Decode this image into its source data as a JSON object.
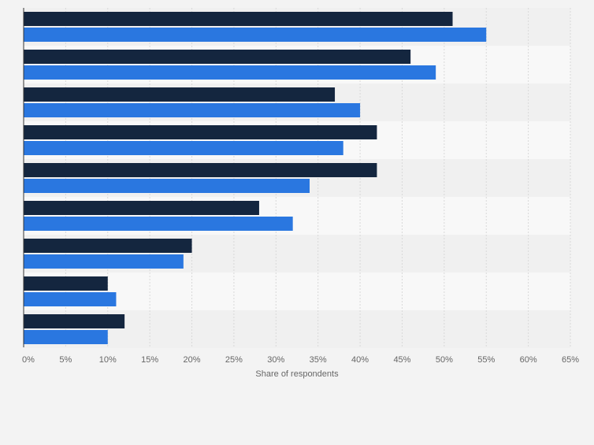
{
  "chart_data": {
    "type": "bar",
    "orientation": "horizontal",
    "categories": [
      "",
      "",
      "",
      "",
      "",
      "",
      "",
      "",
      ""
    ],
    "series": [
      {
        "color": "#14263f",
        "values": [
          51,
          46,
          37,
          42,
          42,
          28,
          20,
          10,
          12
        ]
      },
      {
        "color": "#2a77e0",
        "values": [
          55,
          49,
          40,
          38,
          34,
          32,
          19,
          11,
          10
        ]
      }
    ],
    "xlabel": "Share of respondents",
    "xlim": [
      0,
      65
    ],
    "xticks": [
      "0%",
      "5%",
      "10%",
      "15%",
      "20%",
      "25%",
      "30%",
      "35%",
      "40%",
      "45%",
      "50%",
      "55%",
      "60%",
      "65%"
    ],
    "grid": true,
    "legend": "none"
  }
}
